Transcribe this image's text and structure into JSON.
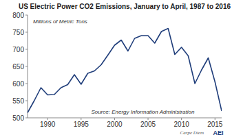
{
  "chart_data": {
    "type": "line",
    "title": "US Electric Power CO2 Emissions, January to April, 1987 to 2016",
    "annotations": [
      "Millions of Metric Tons",
      "Source: Energy Information Administration"
    ],
    "footer": [
      "Carpe Diem",
      "AEI"
    ],
    "x": [
      1987,
      1988,
      1989,
      1990,
      1991,
      1992,
      1993,
      1994,
      1995,
      1996,
      1997,
      1998,
      1999,
      2000,
      2001,
      2002,
      2003,
      2004,
      2005,
      2006,
      2007,
      2008,
      2009,
      2010,
      2011,
      2012,
      2013,
      2014,
      2015,
      2016
    ],
    "values": [
      515,
      550,
      588,
      567,
      568,
      588,
      597,
      626,
      598,
      630,
      637,
      655,
      683,
      712,
      727,
      695,
      732,
      740,
      740,
      718,
      752,
      761,
      685,
      706,
      681,
      600,
      640,
      675,
      605,
      520
    ],
    "color": "#1f3d7a",
    "xlim": [
      1987,
      2016
    ],
    "xticks": [
      1990,
      1995,
      2000,
      2005,
      2010,
      2015
    ],
    "ylim": [
      500,
      800
    ],
    "yticks": [
      500,
      550,
      600,
      650,
      700,
      750,
      800
    ],
    "grid": false
  }
}
